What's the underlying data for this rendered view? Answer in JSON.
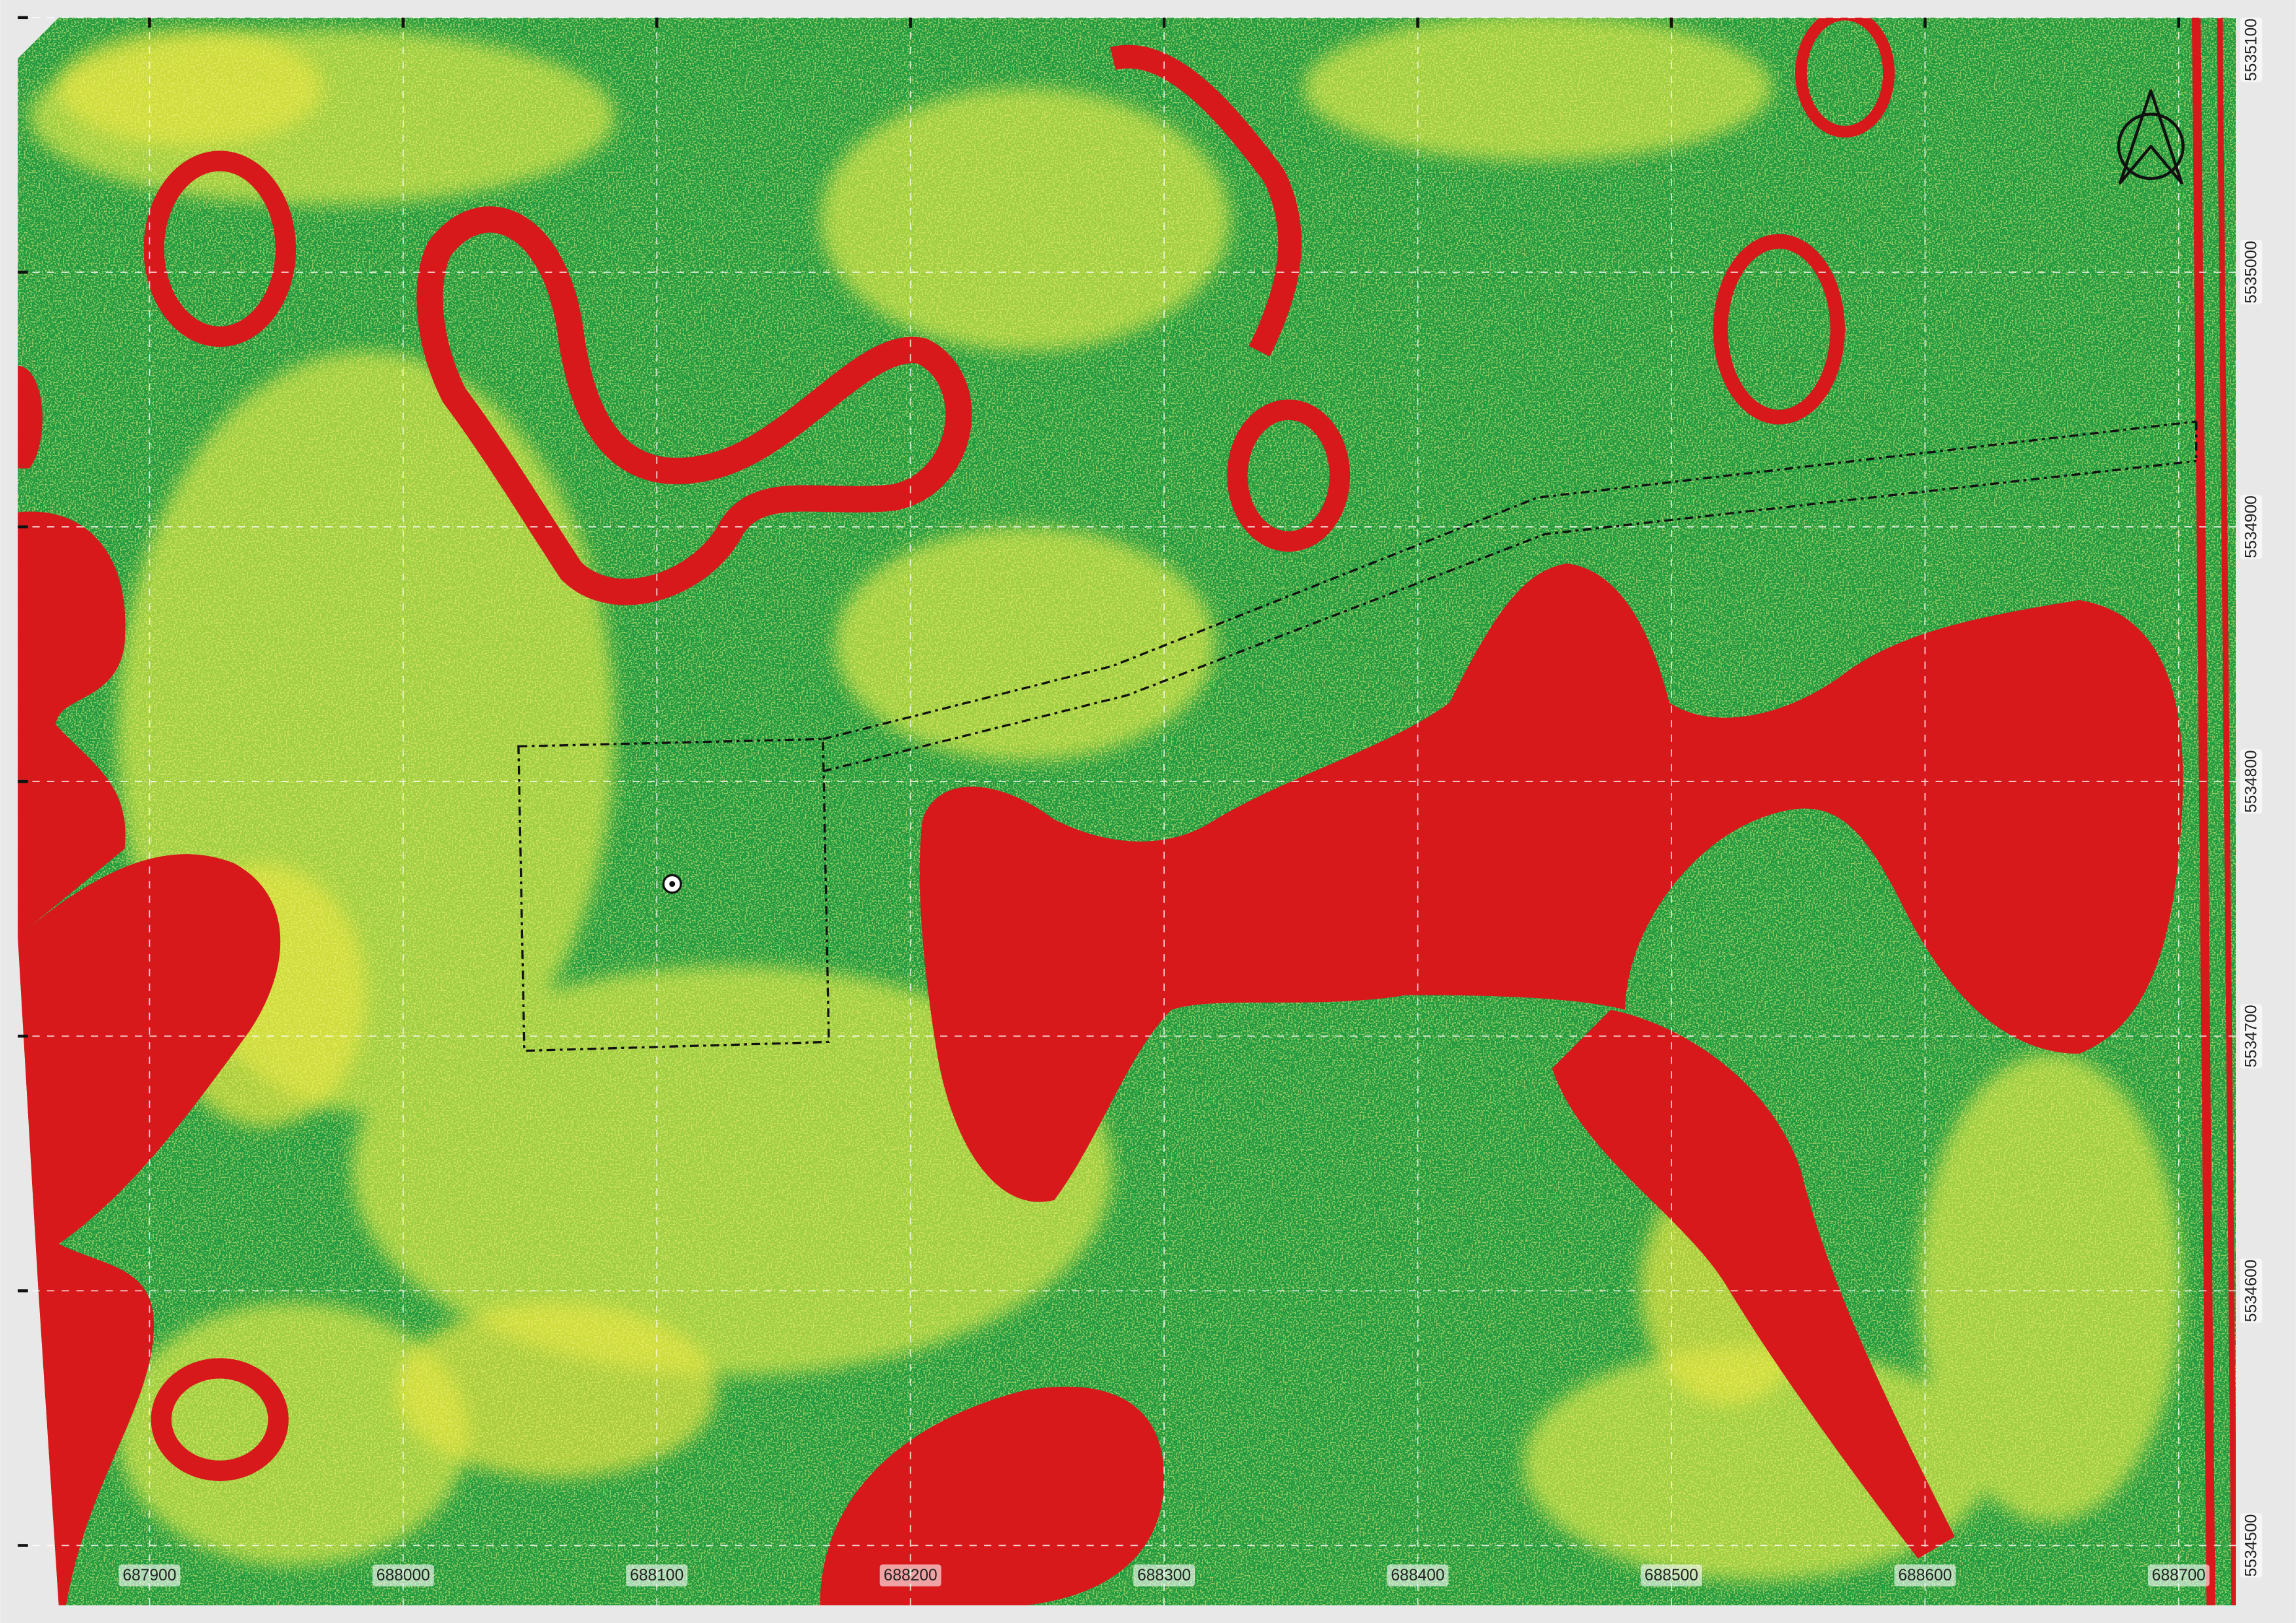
{
  "map": {
    "x_labels": [
      687900,
      688000,
      688100,
      688200,
      688300,
      688400,
      688500,
      688600,
      688700
    ],
    "y_labels": [
      5534500,
      5534600,
      5534700,
      5534800,
      5534900,
      5535000,
      5535100
    ]
  }
}
